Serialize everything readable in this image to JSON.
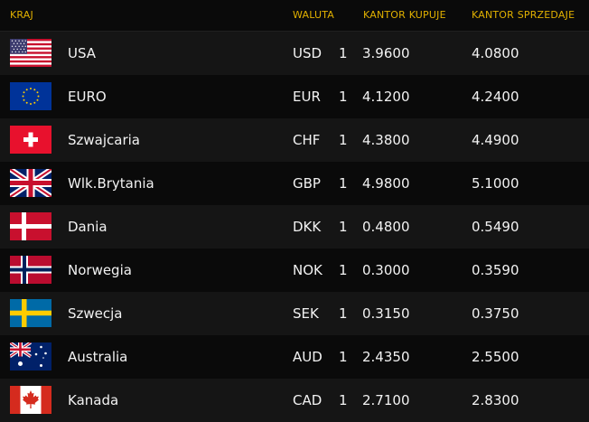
{
  "header": {
    "country": "KRAJ",
    "currency": "WALUTA",
    "buy": "KANTOR KUPUJE",
    "sell": "KANTOR SPRZEDAJE"
  },
  "colors": {
    "header_text": "#e0b000",
    "row_odd": "#151515",
    "row_even": "#0a0a0a"
  },
  "rows": [
    {
      "flag": "us-flag-icon",
      "name": "USA",
      "code": "USD",
      "unit": "1",
      "buy": "3.9600",
      "sell": "4.0800"
    },
    {
      "flag": "eu-flag-icon",
      "name": "EURO",
      "code": "EUR",
      "unit": "1",
      "buy": "4.1200",
      "sell": "4.2400"
    },
    {
      "flag": "ch-flag-icon",
      "name": "Szwajcaria",
      "code": "CHF",
      "unit": "1",
      "buy": "4.3800",
      "sell": "4.4900"
    },
    {
      "flag": "gb-flag-icon",
      "name": "Wlk.Brytania",
      "code": "GBP",
      "unit": "1",
      "buy": "4.9800",
      "sell": "5.1000"
    },
    {
      "flag": "dk-flag-icon",
      "name": "Dania",
      "code": "DKK",
      "unit": "1",
      "buy": "0.4800",
      "sell": "0.5490"
    },
    {
      "flag": "no-flag-icon",
      "name": "Norwegia",
      "code": "NOK",
      "unit": "1",
      "buy": "0.3000",
      "sell": "0.3590"
    },
    {
      "flag": "se-flag-icon",
      "name": "Szwecja",
      "code": "SEK",
      "unit": "1",
      "buy": "0.3150",
      "sell": "0.3750"
    },
    {
      "flag": "au-flag-icon",
      "name": "Australia",
      "code": "AUD",
      "unit": "1",
      "buy": "2.4350",
      "sell": "2.5500"
    },
    {
      "flag": "ca-flag-icon",
      "name": "Kanada",
      "code": "CAD",
      "unit": "1",
      "buy": "2.7100",
      "sell": "2.8300"
    }
  ]
}
